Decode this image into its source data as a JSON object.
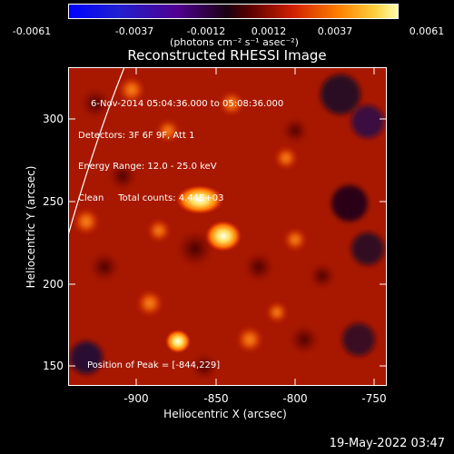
{
  "colorbar": {
    "tick_labels": [
      "-0.0061",
      "-0.0037",
      "-0.0012",
      "0.0012",
      "0.0037",
      "0.0061"
    ],
    "units": "(photons cm⁻² s⁻¹ asec⁻²)"
  },
  "title": "Reconstructed RHESSI Image",
  "info": {
    "time": "6-Nov-2014 05:04:36.000 to 05:08:36.000",
    "detectors": "Detectors: 3F 6F 9F, Att 1",
    "energy": "Energy Range: 12.0 - 25.0 keV",
    "method": "Clean     Total counts: 4.44E+03"
  },
  "peak_label": "Position of Peak = [-844,229]",
  "x_axis": {
    "label": "Heliocentric X (arcsec)",
    "ticks": [
      "-900",
      "-850",
      "-800",
      "-750"
    ]
  },
  "y_axis": {
    "label": "Heliocentric Y (arcsec)",
    "ticks": [
      "300",
      "250",
      "200",
      "150"
    ]
  },
  "footer_date": "19-May-2022 03:47",
  "colors": {
    "background": "#000000",
    "limb_line": "#ffffff",
    "colormap": [
      "#0000ff",
      "#3a1070",
      "#2a0000",
      "#c01000",
      "#ff6a00",
      "#ffe060"
    ]
  }
}
